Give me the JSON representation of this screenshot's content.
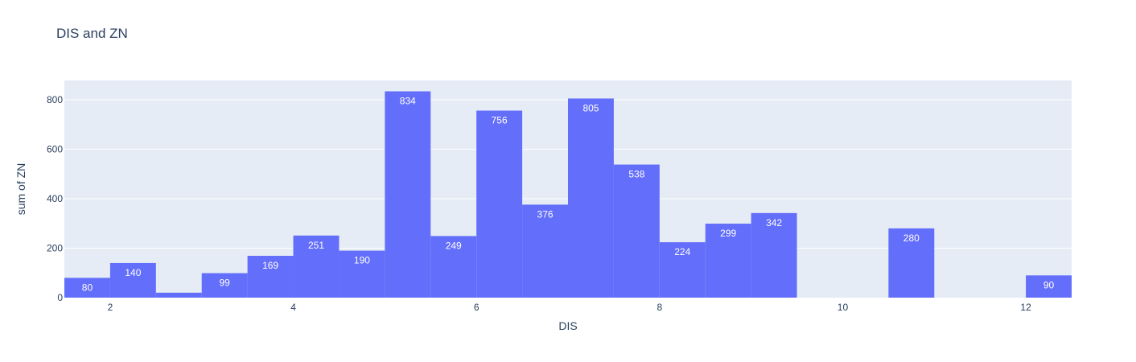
{
  "chart_data": {
    "type": "bar",
    "title": "DIS and ZN",
    "xlabel": "DIS",
    "ylabel": "sum of ZN",
    "xlim": [
      1.5,
      12.5
    ],
    "ylim": [
      0,
      878
    ],
    "bin_width": 0.5,
    "x_ticks": [
      2,
      4,
      6,
      8,
      10,
      12
    ],
    "y_ticks": [
      0,
      200,
      400,
      600,
      800
    ],
    "bins": [
      {
        "start": 1.5,
        "value": 80
      },
      {
        "start": 2.0,
        "value": 140
      },
      {
        "start": 2.5,
        "value": 20
      },
      {
        "start": 3.0,
        "value": 99
      },
      {
        "start": 3.5,
        "value": 169
      },
      {
        "start": 4.0,
        "value": 251
      },
      {
        "start": 4.5,
        "value": 190
      },
      {
        "start": 5.0,
        "value": 834
      },
      {
        "start": 5.5,
        "value": 249
      },
      {
        "start": 6.0,
        "value": 756
      },
      {
        "start": 6.5,
        "value": 376
      },
      {
        "start": 7.0,
        "value": 805
      },
      {
        "start": 7.5,
        "value": 538
      },
      {
        "start": 8.0,
        "value": 224
      },
      {
        "start": 8.5,
        "value": 299
      },
      {
        "start": 9.0,
        "value": 342
      },
      {
        "start": 10.5,
        "value": 280
      },
      {
        "start": 12.0,
        "value": 90
      }
    ],
    "bar_color": "#636efa",
    "plot_bg": "#e5ecf6",
    "grid": true,
    "legend": "none"
  }
}
